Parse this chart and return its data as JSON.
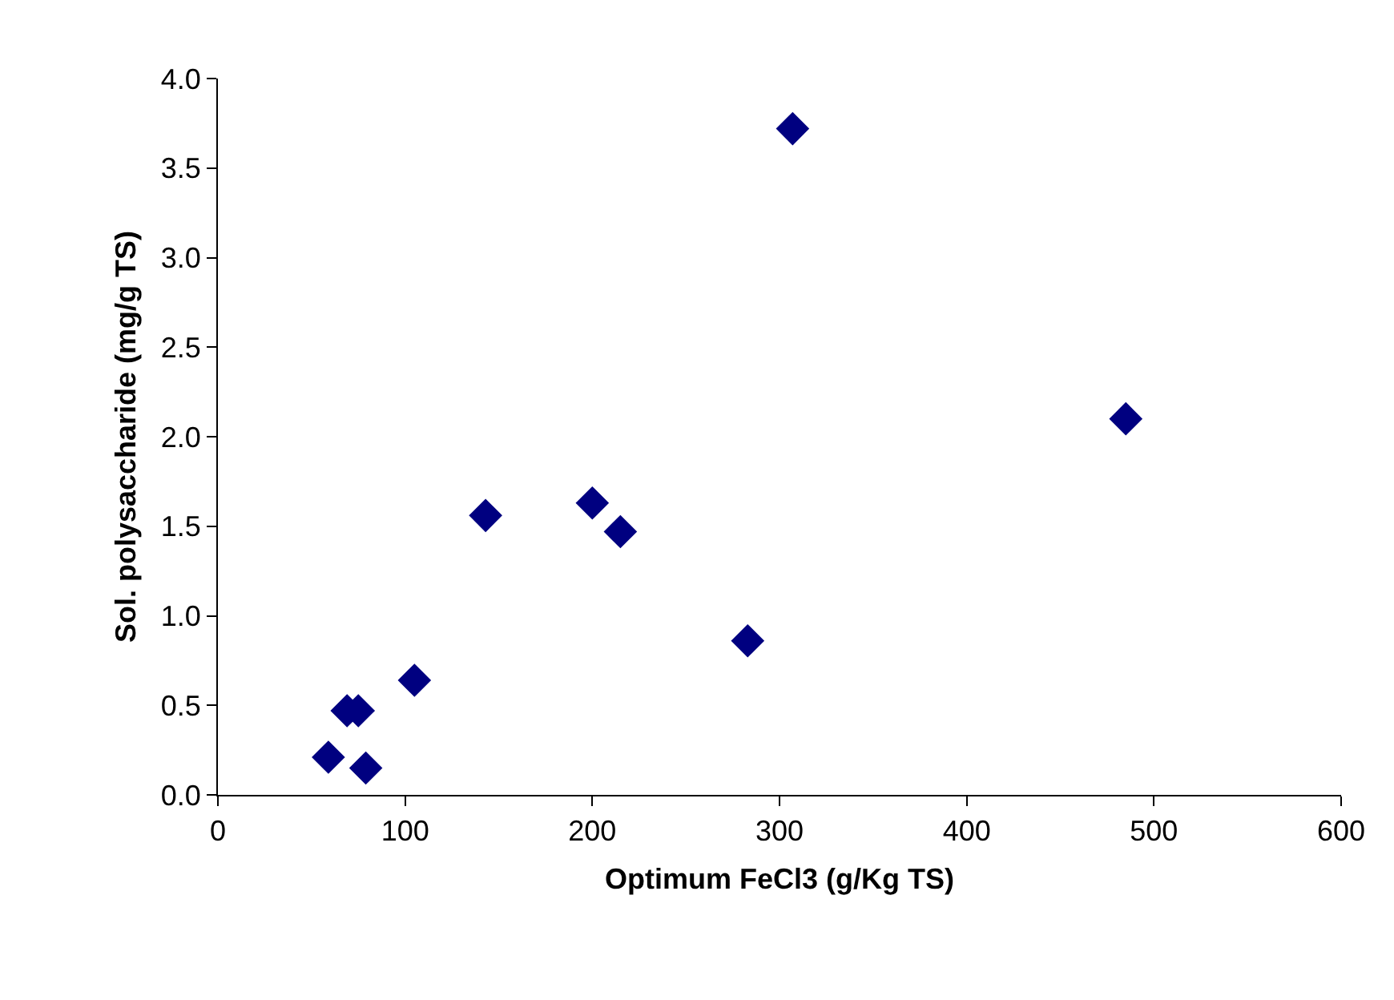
{
  "chart_data": {
    "type": "scatter",
    "xlabel": "Optimum FeCl3 (g/Kg TS)",
    "ylabel": "Sol. polysaccharide (mg/g TS)",
    "x": [
      59,
      69,
      75,
      79,
      105,
      143,
      200,
      215,
      283,
      307,
      485
    ],
    "series": [
      {
        "color": "#000080",
        "values": [
          0.21,
          0.47,
          0.47,
          0.15,
          0.64,
          1.56,
          1.63,
          1.47,
          0.86,
          3.72,
          2.1
        ]
      }
    ],
    "xlim": [
      0,
      600
    ],
    "xticks": [
      0,
      100,
      200,
      300,
      400,
      500,
      600
    ],
    "ylim": [
      0,
      4
    ],
    "yticks": [
      {
        "value": 0,
        "label": "0.0"
      },
      {
        "value": 0.5,
        "label": "0.5"
      },
      {
        "value": 1,
        "label": "1.0"
      },
      {
        "value": 1.5,
        "label": "1.5"
      },
      {
        "value": 2,
        "label": "2.0"
      },
      {
        "value": 2.5,
        "label": "2.5"
      },
      {
        "value": 3,
        "label": "3.0"
      },
      {
        "value": 3.5,
        "label": "3.5"
      },
      {
        "value": 4,
        "label": "4.0"
      }
    ],
    "marker": "diamond"
  }
}
